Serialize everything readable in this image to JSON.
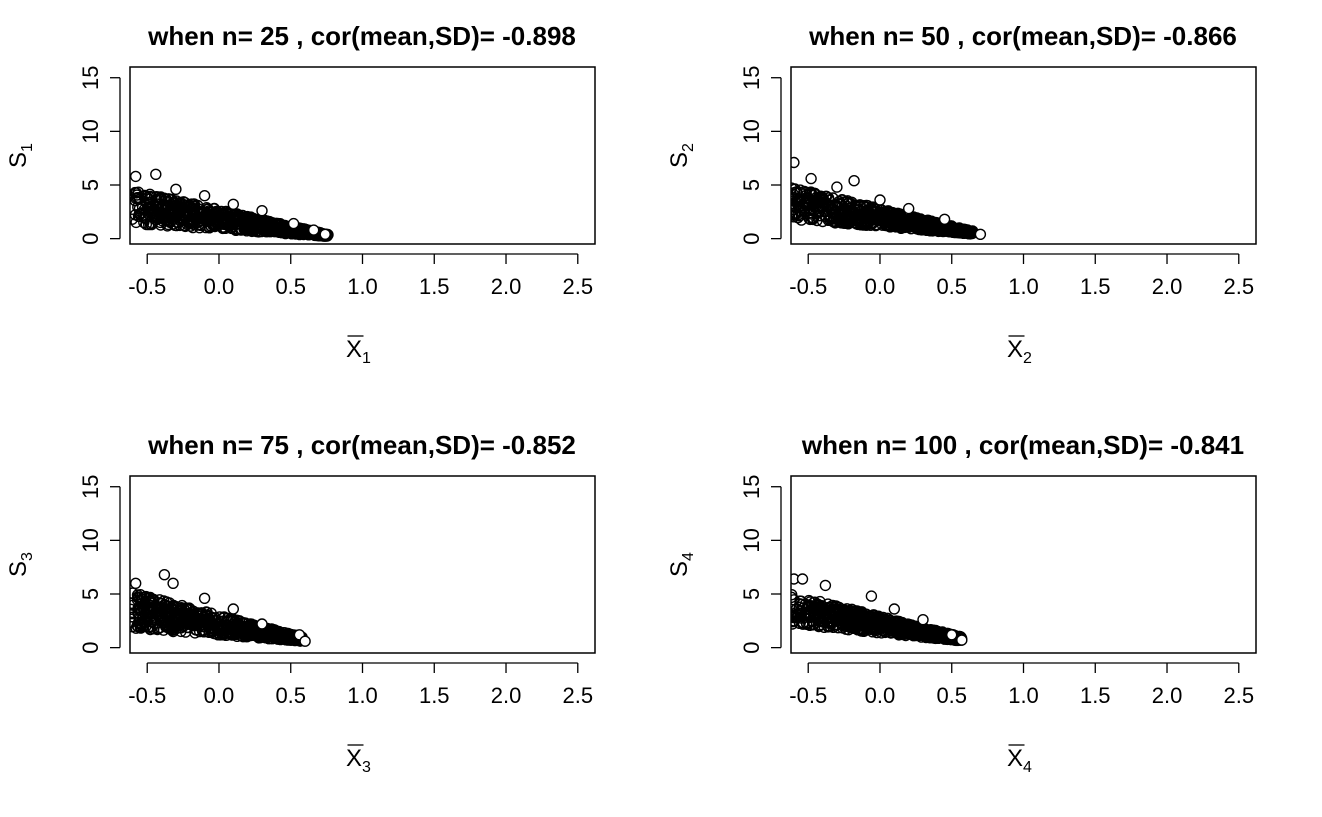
{
  "chart_data": [
    {
      "type": "scatter",
      "title": "when n= 25 , cor(mean,SD)= -0.898",
      "xlabel": {
        "symbol": "X",
        "overline": true,
        "subscript": "1"
      },
      "ylabel": {
        "symbol": "S",
        "subscript": "1"
      },
      "xlim": [
        -0.62,
        2.62
      ],
      "ylim": [
        -0.5,
        16
      ],
      "xticks": [
        -0.5,
        0.0,
        0.5,
        1.0,
        1.5,
        2.0,
        2.5
      ],
      "xtick_labels": [
        "-0.5",
        "0.0",
        "0.5",
        "1.0",
        "1.5",
        "2.0",
        "2.5"
      ],
      "yticks": [
        0,
        5,
        10,
        15
      ],
      "ytick_labels": [
        "0",
        "5",
        "10",
        "15"
      ],
      "grid": false,
      "marker": "open-circle",
      "cloud": {
        "x": [
          -0.62,
          0.76
        ],
        "upper": [
          4.6,
          0.4
        ],
        "lower": [
          1.4,
          0.2
        ]
      },
      "points": [
        {
          "x": -0.58,
          "y": 5.8
        },
        {
          "x": -0.44,
          "y": 6.0
        },
        {
          "x": -0.3,
          "y": 4.6
        },
        {
          "x": -0.1,
          "y": 4.0
        },
        {
          "x": 0.1,
          "y": 3.2
        },
        {
          "x": 0.3,
          "y": 2.6
        },
        {
          "x": 0.52,
          "y": 1.4
        },
        {
          "x": 0.66,
          "y": 0.8
        },
        {
          "x": 0.74,
          "y": 0.4
        }
      ]
    },
    {
      "type": "scatter",
      "title": "when n= 50 , cor(mean,SD)= -0.866",
      "xlabel": {
        "symbol": "X",
        "overline": true,
        "subscript": "2"
      },
      "ylabel": {
        "symbol": "S",
        "subscript": "2"
      },
      "xlim": [
        -0.62,
        2.62
      ],
      "ylim": [
        -0.5,
        16
      ],
      "xticks": [
        -0.5,
        0.0,
        0.5,
        1.0,
        1.5,
        2.0,
        2.5
      ],
      "xtick_labels": [
        "-0.5",
        "0.0",
        "0.5",
        "1.0",
        "1.5",
        "2.0",
        "2.5"
      ],
      "yticks": [
        0,
        5,
        10,
        15
      ],
      "ytick_labels": [
        "0",
        "5",
        "10",
        "15"
      ],
      "grid": false,
      "marker": "open-circle",
      "cloud": {
        "x": [
          -0.62,
          0.65
        ],
        "upper": [
          4.8,
          0.7
        ],
        "lower": [
          1.8,
          0.4
        ]
      },
      "points": [
        {
          "x": -0.6,
          "y": 7.1
        },
        {
          "x": -0.48,
          "y": 5.6
        },
        {
          "x": -0.18,
          "y": 5.4
        },
        {
          "x": -0.3,
          "y": 4.8
        },
        {
          "x": 0.0,
          "y": 3.6
        },
        {
          "x": 0.2,
          "y": 2.8
        },
        {
          "x": 0.45,
          "y": 1.8
        },
        {
          "x": 0.7,
          "y": 0.4
        }
      ]
    },
    {
      "type": "scatter",
      "title": "when n= 75 , cor(mean,SD)= -0.852",
      "xlabel": {
        "symbol": "X",
        "overline": true,
        "subscript": "3"
      },
      "ylabel": {
        "symbol": "S",
        "subscript": "3"
      },
      "xlim": [
        -0.62,
        2.62
      ],
      "ylim": [
        -0.5,
        16
      ],
      "xticks": [
        -0.5,
        0.0,
        0.5,
        1.0,
        1.5,
        2.0,
        2.5
      ],
      "xtick_labels": [
        "-0.5",
        "0.0",
        "0.5",
        "1.0",
        "1.5",
        "2.0",
        "2.5"
      ],
      "yticks": [
        0,
        5,
        10,
        15
      ],
      "ytick_labels": [
        "0",
        "5",
        "10",
        "15"
      ],
      "grid": false,
      "marker": "open-circle",
      "cloud": {
        "x": [
          -0.62,
          0.58
        ],
        "upper": [
          5.2,
          1.0
        ],
        "lower": [
          1.8,
          0.6
        ]
      },
      "points": [
        {
          "x": -0.58,
          "y": 6.0
        },
        {
          "x": -0.38,
          "y": 6.8
        },
        {
          "x": -0.32,
          "y": 6.0
        },
        {
          "x": -0.1,
          "y": 4.6
        },
        {
          "x": 0.1,
          "y": 3.6
        },
        {
          "x": 0.3,
          "y": 2.2
        },
        {
          "x": 0.56,
          "y": 1.2
        },
        {
          "x": 0.6,
          "y": 0.6
        }
      ]
    },
    {
      "type": "scatter",
      "title": "when n= 100 , cor(mean,SD)= -0.841",
      "xlabel": {
        "symbol": "X",
        "overline": true,
        "subscript": "4"
      },
      "ylabel": {
        "symbol": "S",
        "subscript": "4"
      },
      "xlim": [
        -0.62,
        2.62
      ],
      "ylim": [
        -0.5,
        16
      ],
      "xticks": [
        -0.5,
        0.0,
        0.5,
        1.0,
        1.5,
        2.0,
        2.5
      ],
      "xtick_labels": [
        "-0.5",
        "0.0",
        "0.5",
        "1.0",
        "1.5",
        "2.0",
        "2.5"
      ],
      "yticks": [
        0,
        5,
        10,
        15
      ],
      "ytick_labels": [
        "0",
        "5",
        "10",
        "15"
      ],
      "grid": false,
      "marker": "open-circle",
      "cloud": {
        "x": [
          -0.62,
          0.57
        ],
        "upper": [
          5.0,
          1.0
        ],
        "lower": [
          2.2,
          0.6
        ]
      },
      "points": [
        {
          "x": -0.6,
          "y": 6.4
        },
        {
          "x": -0.54,
          "y": 6.4
        },
        {
          "x": -0.38,
          "y": 5.8
        },
        {
          "x": -0.06,
          "y": 4.8
        },
        {
          "x": 0.1,
          "y": 3.6
        },
        {
          "x": 0.3,
          "y": 2.6
        },
        {
          "x": 0.5,
          "y": 1.2
        },
        {
          "x": 0.57,
          "y": 0.7
        }
      ]
    }
  ]
}
